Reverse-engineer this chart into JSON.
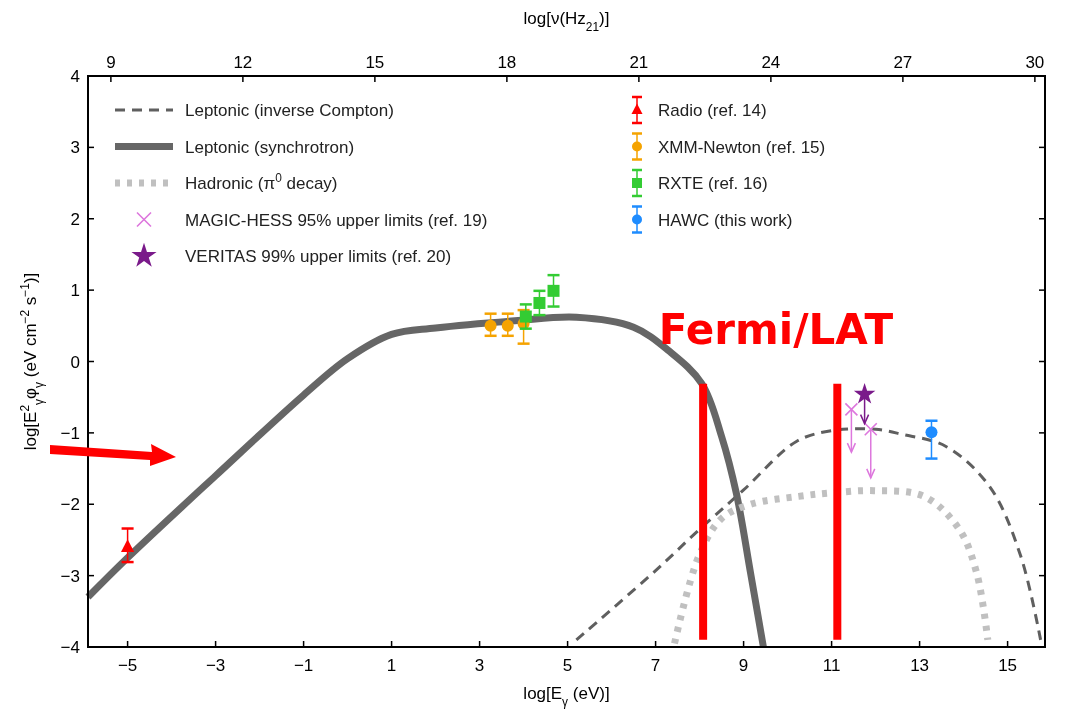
{
  "chart_data": {
    "type": "line",
    "xlabel": "log[E$_{γ}$ (eV)]",
    "ylabel": "log[E$^{2}$$_{γ}$φ$_{γ}$ (eV cm$^{−2}$ s$^{−1}$)]",
    "x2label": "log[ν(Hz$_{21}$)]",
    "xlim": [
      -5.9,
      15.85
    ],
    "ylim": [
      -4,
      4
    ],
    "x2lim": [
      8.48,
      30.23
    ],
    "xticks": [
      {
        "value": -5,
        "label": "−5"
      },
      {
        "value": -3,
        "label": "−3"
      },
      {
        "value": -1,
        "label": "−1"
      },
      1,
      3,
      5,
      7,
      9,
      11,
      13,
      15
    ],
    "yticks": [
      {
        "value": -4,
        "label": "−4"
      },
      {
        "value": -3,
        "label": "−3"
      },
      {
        "value": -2,
        "label": "−2"
      },
      {
        "value": -1,
        "label": "−1"
      },
      0,
      1,
      2,
      3,
      4
    ],
    "x2ticks": [
      9,
      12,
      15,
      18,
      21,
      24,
      27,
      30
    ],
    "legend": "top left",
    "grid": false,
    "annotations": [
      "Fermi/LAT"
    ],
    "series": [
      {
        "name": "Leptonic (inverse Compton)",
        "line_style": "dashed",
        "color": "#5f5f5f",
        "x": [
          5.2,
          7.0,
          8.0,
          9.0,
          10.2,
          11.0,
          12.0,
          12.6,
          13.6,
          14.6,
          15.3,
          15.75
        ],
        "values": [
          -3.9,
          -2.93,
          -2.35,
          -1.8,
          -1.12,
          -0.97,
          -0.95,
          -1.02,
          -1.19,
          -1.76,
          -2.73,
          -3.9
        ]
      },
      {
        "name": "Leptonic (synchrotron)",
        "line_style": "solid",
        "color": "#666666",
        "x": [
          -5.9,
          -5,
          -3,
          -1,
          0,
          1,
          2,
          3.8,
          5.2,
          6.5,
          7.3,
          8.05,
          8.5,
          8.84,
          9.16,
          9.45
        ],
        "values": [
          -3.3,
          -2.75,
          -1.6,
          -0.47,
          0.04,
          0.38,
          0.47,
          0.57,
          0.62,
          0.48,
          0.15,
          -0.31,
          -1.05,
          -1.86,
          -2.97,
          -4
        ]
      },
      {
        "name": "Hadronic (π$^{0}$ decay)",
        "line_style": "dotted",
        "color": "#c0c0c0",
        "x": [
          7.43,
          7.98,
          8.5,
          9.16,
          10.25,
          11.0,
          11.96,
          13.1,
          13.9,
          14.3,
          14.55
        ],
        "values": [
          -3.95,
          -2.73,
          -2.2,
          -2.0,
          -1.89,
          -1.84,
          -1.81,
          -1.89,
          -2.35,
          -2.97,
          -3.9
        ]
      },
      {
        "name": "MAGIC-HESS 95% upper limits (ref. 19)",
        "type": "scatter",
        "marker": "cross",
        "color": "#dd77dd",
        "x": [
          11.45,
          11.89
        ],
        "values": [
          -0.67,
          -0.95
        ],
        "errors": [
          [
            -1.27,
            -0.67
          ],
          [
            -1.63,
            -0.95
          ]
        ]
      },
      {
        "name": "VERITAS 99% upper limits (ref. 20)",
        "type": "scatter",
        "marker": "star",
        "color": "#7a1a8a",
        "x": [
          11.75
        ],
        "values": [
          -0.46
        ],
        "errors": [
          [
            -0.87,
            -0.46
          ]
        ]
      },
      {
        "name": "Radio (ref. 14)",
        "type": "scatter",
        "marker": "triangle",
        "color": "#ff0000",
        "x": [
          -5
        ],
        "values": [
          -2.6
        ],
        "errors": [
          [
            -2.81,
            -2.34
          ]
        ]
      },
      {
        "name": "XMM-Newton (ref. 15)",
        "type": "scatter",
        "marker": "circle",
        "color": "#f5a300",
        "x": [
          3.25,
          3.64,
          4.0
        ],
        "values": [
          0.5,
          0.5,
          0.53
        ],
        "errors": [
          [
            0.36,
            0.67
          ],
          [
            0.36,
            0.67
          ],
          [
            0.25,
            0.72
          ]
        ]
      },
      {
        "name": "RXTE (ref. 16)",
        "type": "scatter",
        "marker": "square",
        "color": "#33cc33",
        "x": [
          4.05,
          4.36,
          4.68
        ],
        "values": [
          0.63,
          0.82,
          0.99
        ],
        "errors": [
          [
            0.46,
            0.8
          ],
          [
            0.65,
            0.99
          ],
          [
            0.77,
            1.21
          ]
        ]
      },
      {
        "name": "HAWC (this work)",
        "type": "scatter",
        "marker": "circle",
        "color": "#1e8cff",
        "x": [
          13.27
        ],
        "values": [
          -0.99
        ],
        "errors": [
          [
            -1.36,
            -0.83
          ]
        ]
      },
      {
        "line_style": "solid",
        "color": "#ff0000",
        "x": [
          8.08,
          8.08
        ],
        "values": [
          -3.9,
          -0.31
        ]
      },
      {
        "line_style": "solid",
        "color": "#ff0000",
        "x": [
          11.13,
          11.13
        ],
        "values": [
          -3.9,
          -0.31
        ]
      }
    ]
  }
}
